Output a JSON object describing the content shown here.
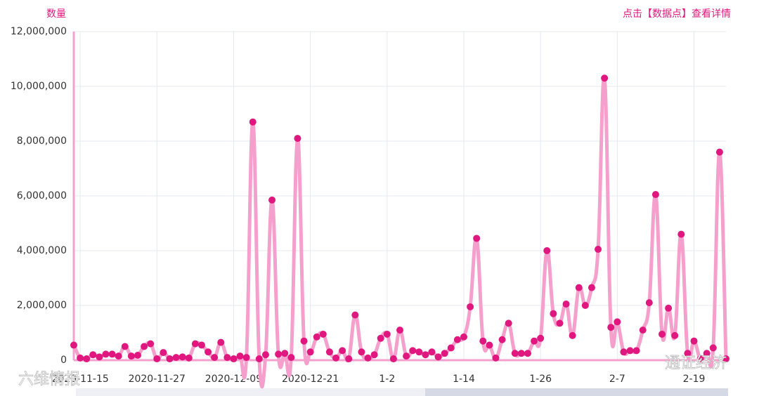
{
  "chart_data": {
    "type": "line",
    "y_label": "数量",
    "hint": "点击【数据点】查看详情",
    "watermarks": [
      "六维情报",
      "通证经济"
    ],
    "line_color": "#f5a0cc",
    "point_color": "#e0177f",
    "grid": true,
    "ylim": [
      0,
      12000000
    ],
    "yticks": [
      0,
      {
        "value": 2000000,
        "label": "2,000,000"
      },
      {
        "value": 4000000,
        "label": "4,000,000"
      },
      {
        "value": 6000000,
        "label": "6,000,000"
      },
      {
        "value": 8000000,
        "label": "8,000,000"
      },
      {
        "value": 10000000,
        "label": "10,000,000"
      },
      {
        "value": 12000000,
        "label": "12,000,000"
      }
    ],
    "categories": [
      null,
      "2020-11-15",
      null,
      null,
      null,
      null,
      null,
      null,
      null,
      null,
      null,
      null,
      null,
      "2020-11-27",
      null,
      null,
      null,
      null,
      null,
      null,
      null,
      null,
      null,
      null,
      null,
      "2020-12-09",
      null,
      null,
      null,
      null,
      null,
      null,
      null,
      null,
      null,
      null,
      null,
      "2020-12-21",
      null,
      null,
      null,
      null,
      null,
      null,
      null,
      null,
      null,
      null,
      null,
      "1-2",
      null,
      null,
      null,
      null,
      null,
      null,
      null,
      null,
      null,
      null,
      null,
      "1-14",
      null,
      null,
      null,
      null,
      null,
      null,
      null,
      null,
      null,
      null,
      null,
      "1-26",
      null,
      null,
      null,
      null,
      null,
      null,
      null,
      null,
      null,
      null,
      null,
      "2-7",
      null,
      null,
      null,
      null,
      null,
      null,
      null,
      null,
      null,
      null,
      null,
      "2-19",
      null,
      null,
      null,
      null,
      null
    ],
    "values": [
      550000,
      80000,
      50000,
      200000,
      120000,
      220000,
      220000,
      150000,
      500000,
      150000,
      180000,
      500000,
      600000,
      50000,
      280000,
      50000,
      100000,
      120000,
      80000,
      600000,
      550000,
      300000,
      100000,
      650000,
      100000,
      50000,
      150000,
      100000,
      8700000,
      50000,
      200000,
      5850000,
      220000,
      250000,
      100000,
      8100000,
      700000,
      300000,
      850000,
      950000,
      300000,
      80000,
      350000,
      50000,
      1650000,
      300000,
      80000,
      200000,
      800000,
      950000,
      50000,
      1100000,
      150000,
      350000,
      300000,
      200000,
      300000,
      120000,
      250000,
      450000,
      750000,
      850000,
      1950000,
      4450000,
      700000,
      550000,
      80000,
      750000,
      1350000,
      250000,
      250000,
      250000,
      700000,
      800000,
      4000000,
      1700000,
      1350000,
      2050000,
      900000,
      2650000,
      2000000,
      2650000,
      4050000,
      10300000,
      1200000,
      1400000,
      300000,
      350000,
      350000,
      1100000,
      2100000,
      6050000,
      950000,
      1900000,
      900000,
      4600000,
      250000,
      700000,
      50000,
      250000,
      450000,
      7600000,
      50000
    ]
  }
}
